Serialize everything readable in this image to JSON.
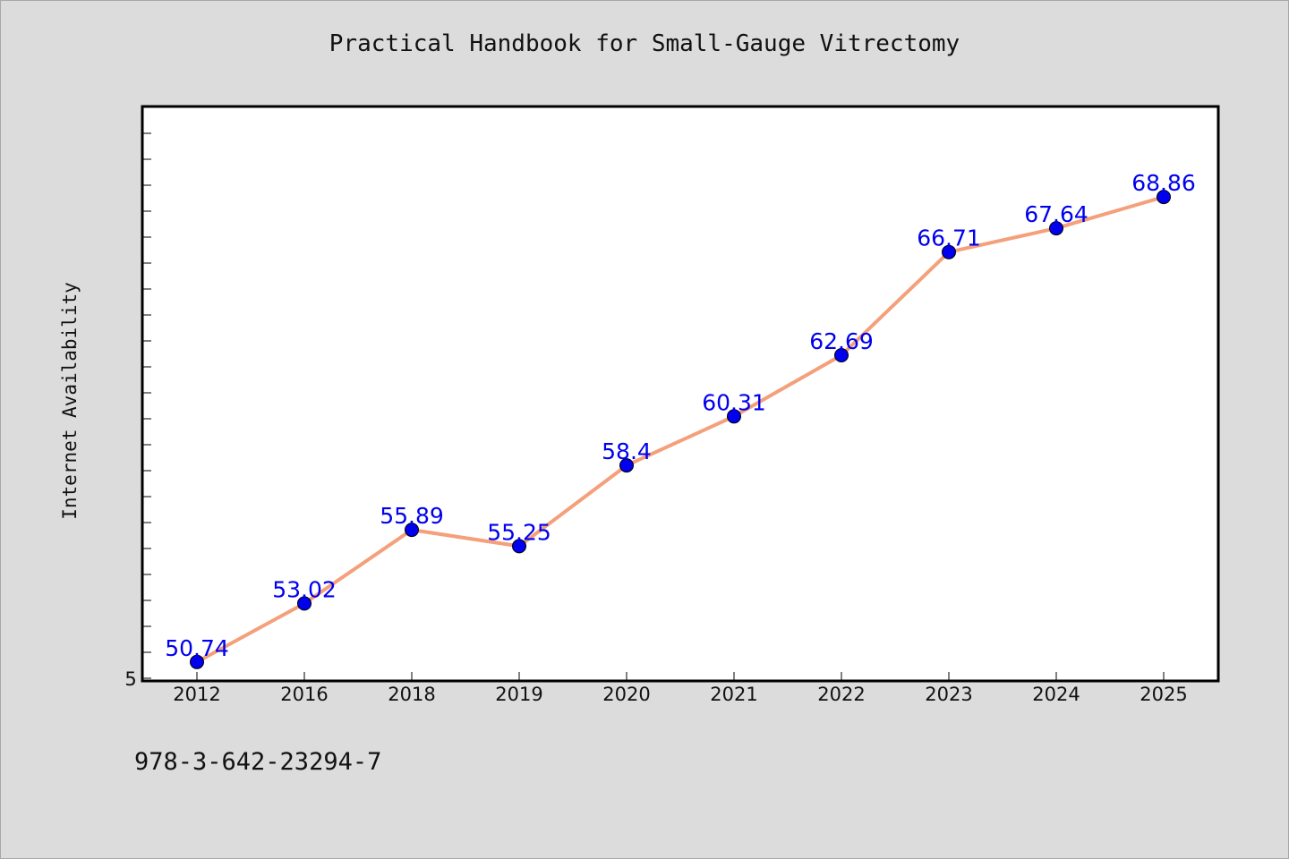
{
  "chart_data": {
    "type": "line",
    "title": "Practical Handbook for Small-Gauge Vitrectomy",
    "xlabel": "",
    "ylabel": "Internet Availability",
    "categories": [
      "2012",
      "2016",
      "2018",
      "2019",
      "2020",
      "2021",
      "2022",
      "2023",
      "2024",
      "2025"
    ],
    "series": [
      {
        "values": [
          50.74,
          53.02,
          55.89,
          55.25,
          58.4,
          60.31,
          62.69,
          66.71,
          67.64,
          68.86
        ],
        "labels": [
          "50.74",
          "53.02",
          "55.89",
          "55.25",
          "58.4",
          "60.31",
          "62.69",
          "66.71",
          "67.64",
          "68.86"
        ]
      }
    ],
    "y_tick_labels": [
      "5"
    ],
    "ylim": [
      50.0,
      72.0
    ],
    "grid": false,
    "line_color": "#f4a07a",
    "marker_color": "#0000ee",
    "label_color": "#0000ee"
  },
  "footer": {
    "isbn": "978-3-642-23294-7"
  }
}
